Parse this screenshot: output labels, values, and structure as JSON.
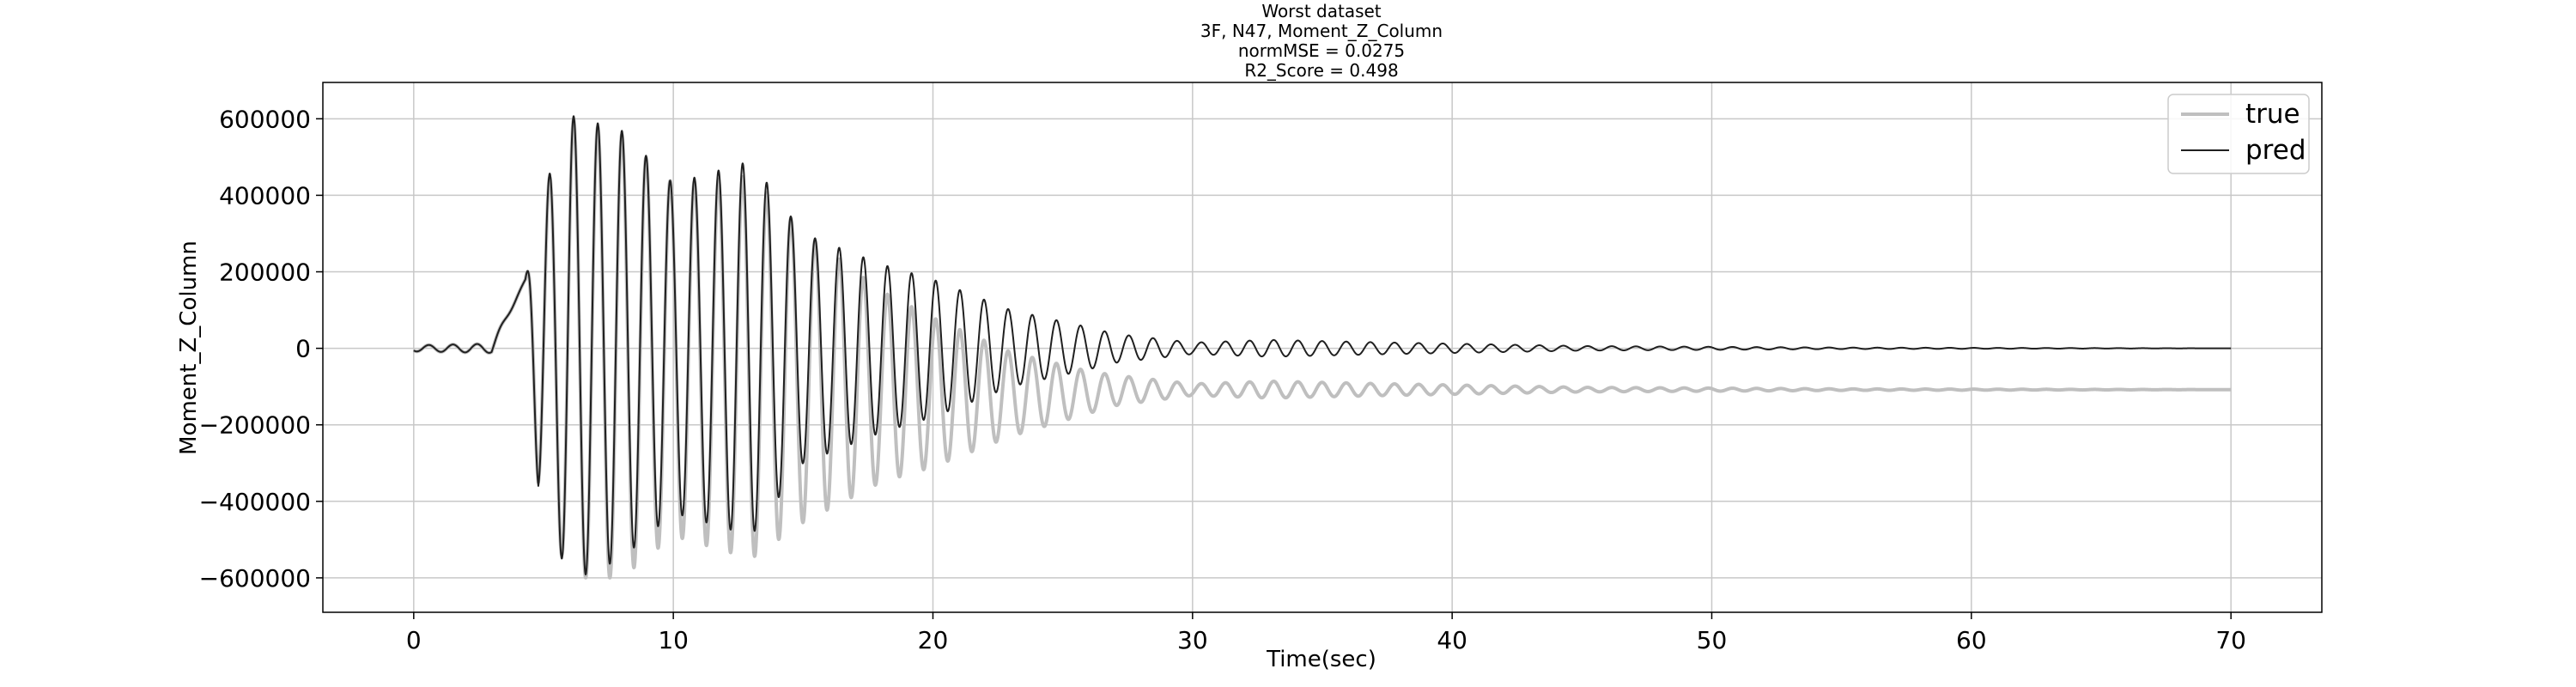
{
  "chart_data": {
    "type": "line",
    "title_lines": [
      "Worst dataset",
      "3F, N47, Moment_Z_Column",
      "normMSE = 0.0275",
      "R2_Score = 0.498"
    ],
    "xlabel": "Time(sec)",
    "ylabel": "Moment_Z_Column",
    "xlim": [
      -3.5,
      73.5
    ],
    "ylim": [
      -690000,
      695000
    ],
    "x_ticks": [
      0,
      10,
      20,
      30,
      40,
      50,
      60,
      70
    ],
    "x_tick_labels": [
      "0",
      "10",
      "20",
      "30",
      "40",
      "50",
      "60",
      "70"
    ],
    "y_ticks": [
      -600000,
      -400000,
      -200000,
      0,
      200000,
      400000,
      600000
    ],
    "y_tick_labels": [
      "−600000",
      "−400000",
      "−200000",
      "0",
      "200000",
      "400000",
      "600000"
    ],
    "grid": true,
    "legend_position": "top-right",
    "series": [
      {
        "name": "true",
        "color": "#bfbfbf",
        "envelope": [
          {
            "t": 0,
            "center": 0,
            "amp": 8000
          },
          {
            "t": 3,
            "center": 0,
            "amp": 12000
          },
          {
            "t": 4.3,
            "center": 180000,
            "amp": 0
          },
          {
            "t": 4.8,
            "center": 0,
            "amp": 360000
          },
          {
            "t": 6,
            "center": 0,
            "amp": 600000
          },
          {
            "t": 8,
            "center": -20000,
            "amp": 580000
          },
          {
            "t": 10,
            "center": -30000,
            "amp": 460000
          },
          {
            "t": 13,
            "center": -50000,
            "amp": 500000
          },
          {
            "t": 15,
            "center": -75000,
            "amp": 380000
          },
          {
            "t": 18,
            "center": -100000,
            "amp": 250000
          },
          {
            "t": 20,
            "center": -115000,
            "amp": 195000
          },
          {
            "t": 23,
            "center": -120000,
            "amp": 110000
          },
          {
            "t": 26,
            "center": -115000,
            "amp": 55000
          },
          {
            "t": 27,
            "center": -110000,
            "amp": 40000
          },
          {
            "t": 30,
            "center": -108000,
            "amp": 15000
          },
          {
            "t": 33,
            "center": -108000,
            "amp": 22000
          },
          {
            "t": 37,
            "center": -108000,
            "amp": 16000
          },
          {
            "t": 45,
            "center": -108000,
            "amp": 6000
          },
          {
            "t": 55,
            "center": -108000,
            "amp": 2000
          },
          {
            "t": 70,
            "center": -108000,
            "amp": 0
          }
        ]
      },
      {
        "name": "pred",
        "color": "#202020",
        "envelope": [
          {
            "t": 0,
            "center": 0,
            "amp": 8000
          },
          {
            "t": 3,
            "center": 0,
            "amp": 12000
          },
          {
            "t": 4.3,
            "center": 180000,
            "amp": 0
          },
          {
            "t": 4.8,
            "center": 0,
            "amp": 370000
          },
          {
            "t": 6,
            "center": 0,
            "amp": 610000
          },
          {
            "t": 8,
            "center": 10000,
            "amp": 560000
          },
          {
            "t": 10,
            "center": 0,
            "amp": 430000
          },
          {
            "t": 13,
            "center": 0,
            "amp": 490000
          },
          {
            "t": 15,
            "center": 0,
            "amp": 300000
          },
          {
            "t": 18,
            "center": 0,
            "amp": 220000
          },
          {
            "t": 20,
            "center": 0,
            "amp": 180000
          },
          {
            "t": 23,
            "center": 0,
            "amp": 100000
          },
          {
            "t": 26,
            "center": 0,
            "amp": 55000
          },
          {
            "t": 27,
            "center": 0,
            "amp": 38000
          },
          {
            "t": 30,
            "center": 0,
            "amp": 15000
          },
          {
            "t": 33,
            "center": 0,
            "amp": 22000
          },
          {
            "t": 37,
            "center": 0,
            "amp": 16000
          },
          {
            "t": 45,
            "center": 0,
            "amp": 6000
          },
          {
            "t": 55,
            "center": 0,
            "amp": 2000
          },
          {
            "t": 70,
            "center": 0,
            "amp": 0
          }
        ]
      }
    ],
    "oscillation_period_sec": 0.93
  }
}
